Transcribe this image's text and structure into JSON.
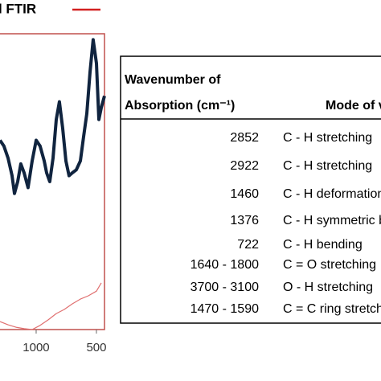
{
  "chart_data": {
    "type": "line",
    "x": [
      1300,
      1267,
      1233,
      1200,
      1180,
      1153,
      1127,
      1100,
      1067,
      1033,
      1000,
      967,
      933,
      913,
      887,
      860,
      833,
      807,
      780,
      753,
      727,
      700,
      667,
      633,
      607,
      580,
      553,
      527,
      500,
      480,
      460,
      433
    ],
    "series": [
      {
        "color": "#10243f",
        "width": 4,
        "values": [
          64,
          62,
          58,
          52,
          46,
          50,
          56,
          53,
          48,
          57,
          64,
          62,
          57,
          53,
          50,
          58,
          71,
          77,
          68,
          57,
          52,
          53,
          54,
          57,
          65,
          73,
          87,
          98,
          90,
          71,
          75,
          79
        ]
      },
      {
        "name": "Oil FTIR",
        "color": "#e07070",
        "width": 1.2,
        "x": [
          1300,
          1233,
          1167,
          1100,
          1033,
          967,
          900,
          833,
          767,
          700,
          633,
          567,
          500,
          460
        ],
        "values": [
          2.7,
          1.6,
          0.8,
          0.3,
          0,
          1.4,
          3.3,
          5.4,
          6.8,
          8.7,
          10.3,
          11.4,
          13,
          15.8
        ]
      }
    ],
    "xlim": [
      1300,
      433
    ],
    "xticks": [
      1000,
      500
    ],
    "ylim": [
      0,
      100
    ],
    "frame_color": "#c0504d",
    "legend_color": "#d32020"
  },
  "table": {
    "header": [
      "Wavenumber of",
      "Absorption (cm⁻¹)",
      "Mode of vibration"
    ],
    "rows": [
      [
        "2852",
        "C - H stretching"
      ],
      [
        "2922",
        "C - H stretching"
      ],
      [
        "1460",
        "C - H deformation"
      ],
      [
        "1376",
        "C - H symmetric bending"
      ],
      [
        "722",
        "C - H bending"
      ],
      [
        "1640 - 1800",
        "C = O stretching"
      ],
      [
        "3700 - 3100",
        "O - H stretching"
      ],
      [
        "1470 - 1590",
        "C = C ring stretching"
      ]
    ]
  }
}
